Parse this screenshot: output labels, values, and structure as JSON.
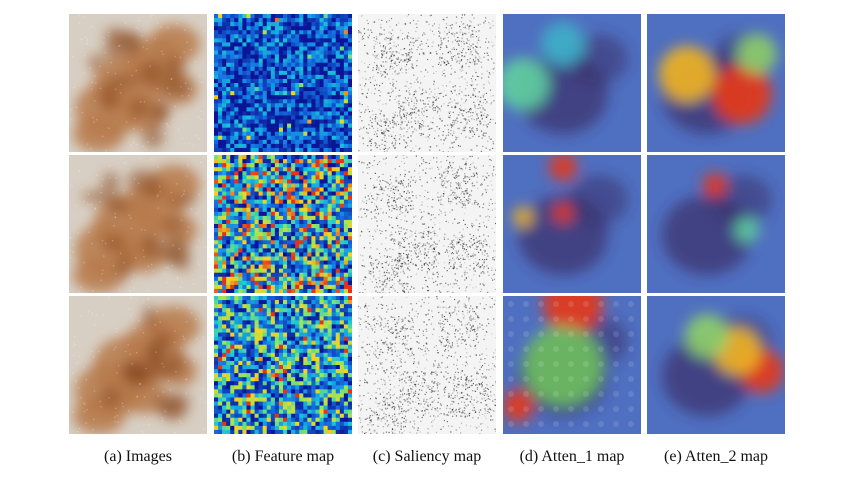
{
  "figure": {
    "columns": [
      {
        "id": "images",
        "caption": "(a) Images",
        "style": "dermoscopy"
      },
      {
        "id": "feature",
        "caption": "(b) Feature map",
        "style": "jet-feature"
      },
      {
        "id": "saliency",
        "caption": "(c) Saliency map",
        "style": "saliency"
      },
      {
        "id": "atten1",
        "caption": "(d) Atten_1 map",
        "style": "attention"
      },
      {
        "id": "atten2",
        "caption": "(e) Atten_2 map",
        "style": "attention"
      }
    ],
    "rows": 3,
    "colors": {
      "skin": "#d8cfc4",
      "lesion_dark": "#8a4a22",
      "lesion_light": "#b77a4a",
      "jet_low": "#0a1a9a",
      "jet_mid": "#19c8d8",
      "jet_high": "#e83a1a",
      "saliency_ink": "#1a1a1a",
      "atten_base": "#4f6fc0",
      "atten_hot": "#e8381a",
      "atten_warm": "#f2b520"
    }
  }
}
